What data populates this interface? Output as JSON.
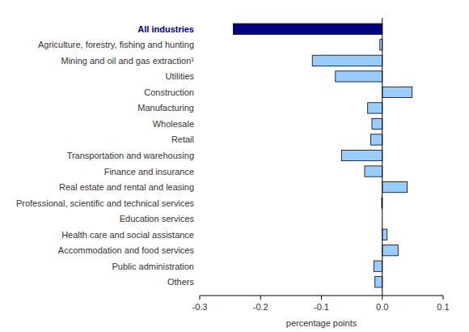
{
  "chart_data": {
    "type": "bar",
    "orientation": "horizontal",
    "grid": false,
    "categories": [
      "All industries",
      "Agriculture, forestry, fishing and hunting",
      "Mining and oil and gas extraction¹",
      "Utilities",
      "Construction",
      "Manufacturing",
      "Wholesale",
      "Retail",
      "Transportation and warehousing",
      "Finance and insurance",
      "Real estate and rental and leasing",
      "Professional, scientific and technical services",
      "Education services",
      "Health care and social assistance",
      "Accommodation and food services",
      "Public administration",
      "Others"
    ],
    "values": [
      -0.245,
      -0.004,
      -0.115,
      -0.077,
      0.049,
      -0.024,
      -0.017,
      -0.019,
      -0.067,
      -0.029,
      0.041,
      -0.001,
      0,
      0.008,
      0.026,
      -0.014,
      -0.012
    ],
    "colors": [
      "#000080",
      "#99ccff",
      "#99ccff",
      "#99ccff",
      "#99ccff",
      "#99ccff",
      "#99ccff",
      "#99ccff",
      "#99ccff",
      "#99ccff",
      "#99ccff",
      "#99ccff",
      "#99ccff",
      "#99ccff",
      "#99ccff",
      "#99ccff",
      "#99ccff"
    ],
    "x_label": "percentage points",
    "xlim": [
      -0.3,
      0.1
    ],
    "xticks": [
      -0.3,
      -0.2,
      -0.1,
      {
        "value": 0,
        "label": "0.0"
      },
      0.1
    ]
  }
}
